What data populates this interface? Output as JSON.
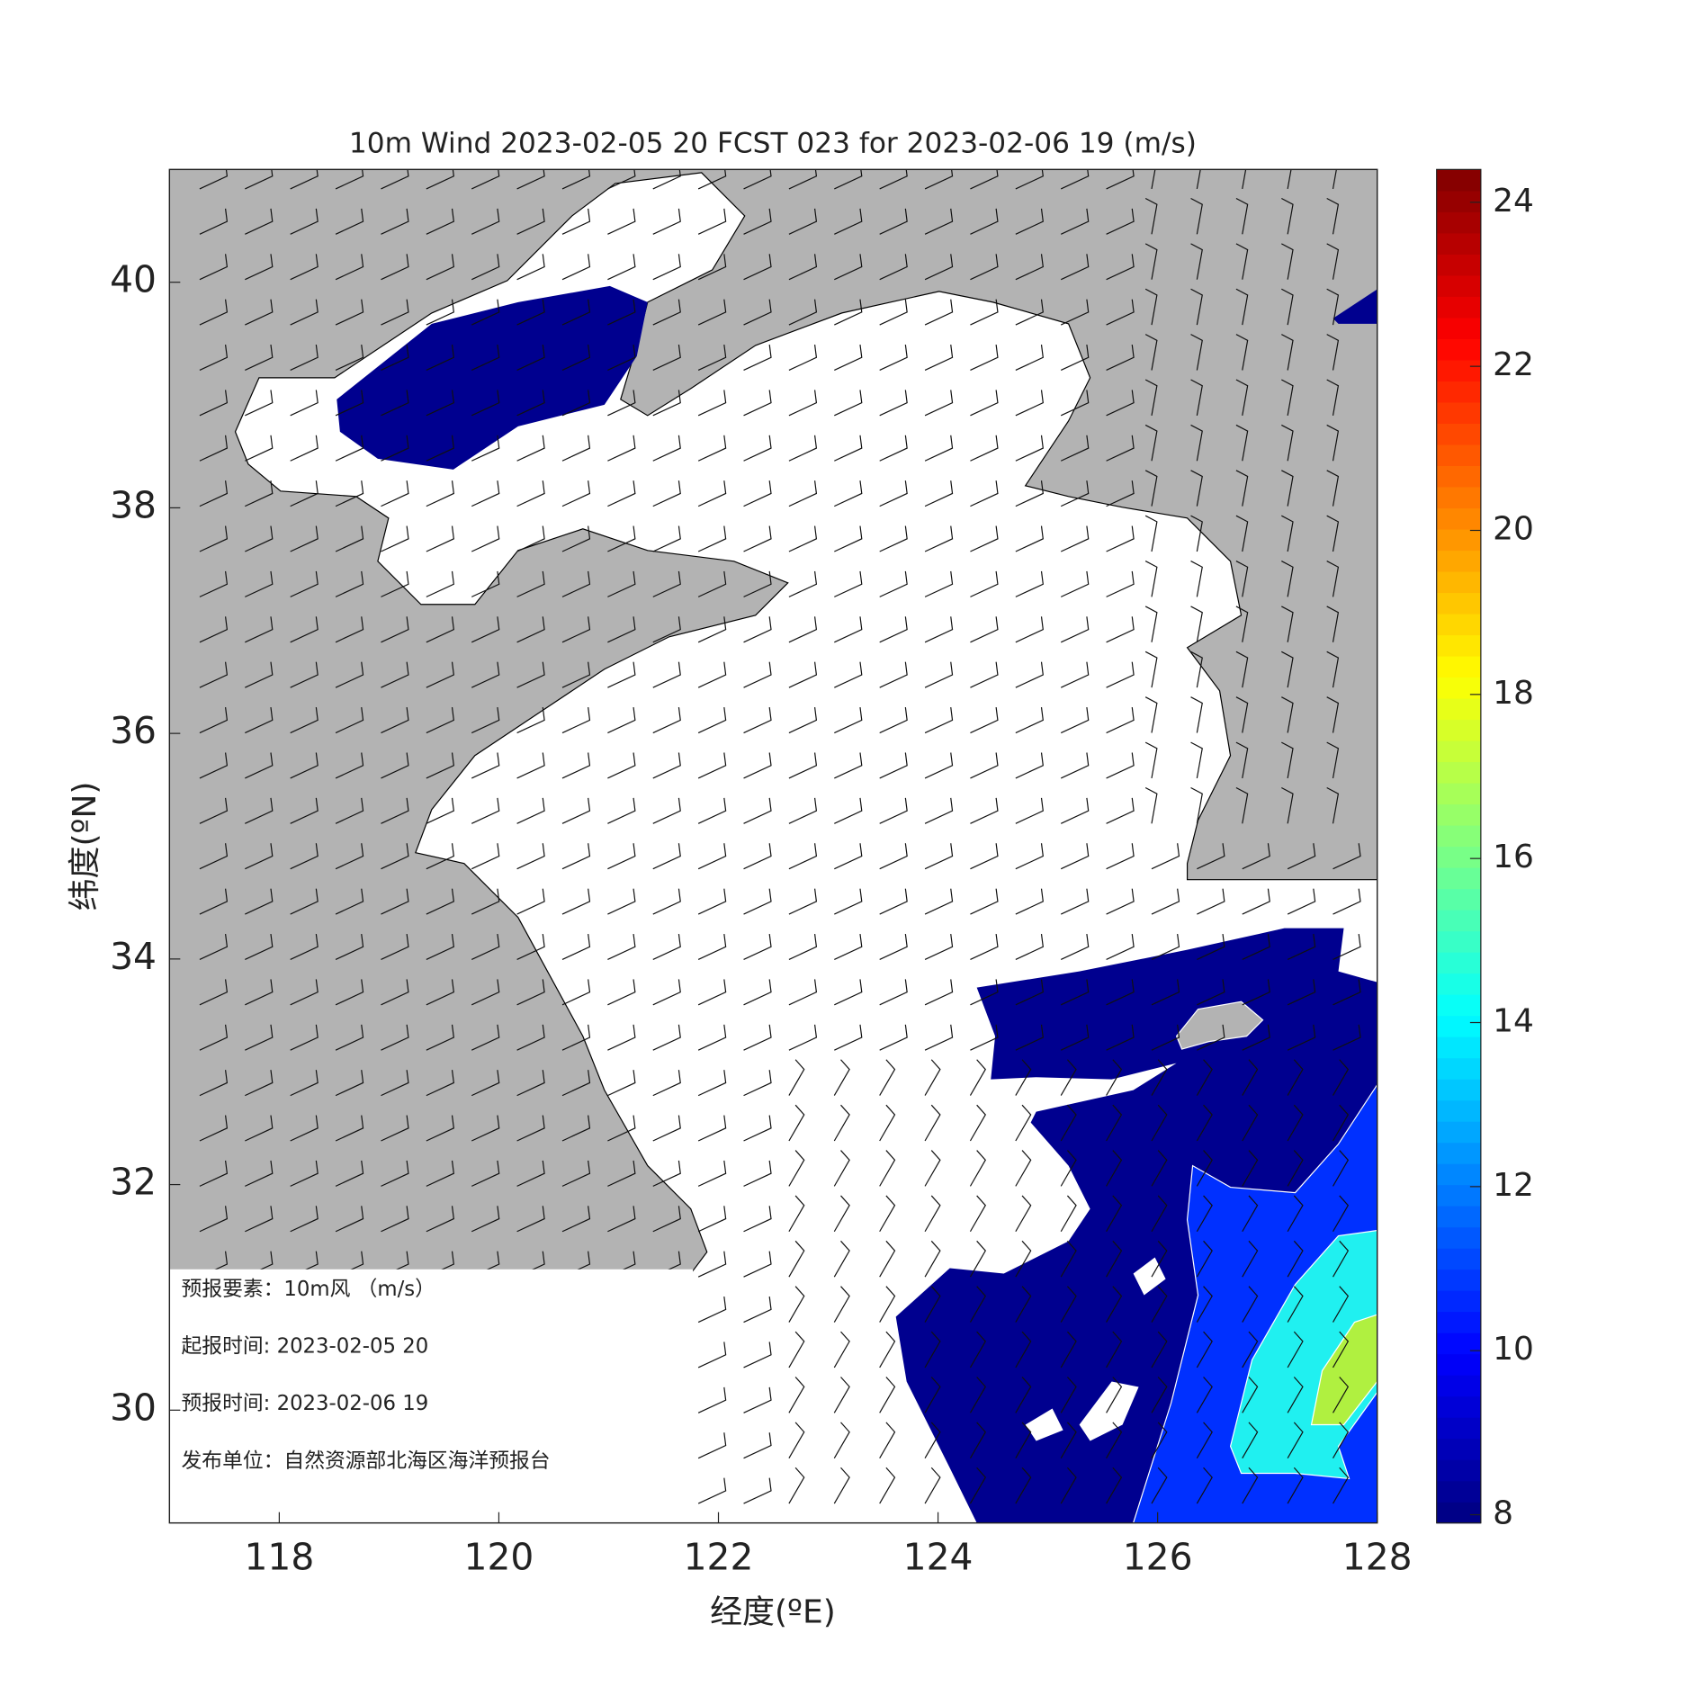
{
  "chart_data": {
    "type": "map",
    "title": "10m Wind 2023-02-05 20 FCST 023 for 2023-02-06 19 (m/s)",
    "x_label": "经度(ºE)",
    "y_label": "纬度(ºN)",
    "xlim": [
      117,
      128
    ],
    "ylim": [
      29,
      41
    ],
    "xticks": [
      118,
      120,
      122,
      124,
      126,
      128
    ],
    "yticks": [
      30,
      32,
      34,
      36,
      38,
      40
    ],
    "colorbar": {
      "lim": [
        7.9,
        24.4
      ],
      "ticks": [
        8,
        10,
        12,
        14,
        16,
        18,
        20,
        22,
        24
      ]
    },
    "info": [
      "预报要素：10m风 （m/s）",
      "起报时间: 2023-02-05 20",
      "预报时间: 2023-02-06 19",
      "发布单位：自然资源部北海区海洋预报台"
    ]
  }
}
